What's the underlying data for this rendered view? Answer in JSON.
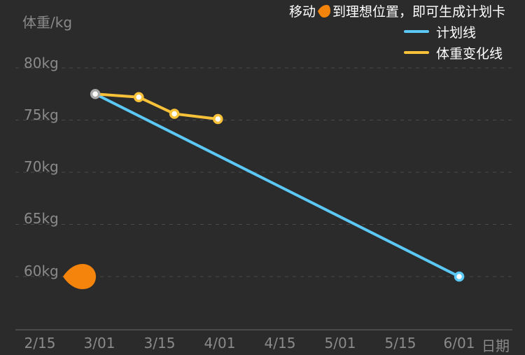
{
  "hint": {
    "before": "移动",
    "after": "到理想位置，即可生成计划卡"
  },
  "legend": {
    "plan_label": "计划线",
    "weight_label": "体重变化线"
  },
  "colors": {
    "background": "#2b2b2b",
    "plan": "#5bc8f5",
    "weight": "#f7c23a",
    "handle": "#f5840c",
    "start_point": "#a8a8a8"
  },
  "chart_data": {
    "type": "line",
    "ylabel": "体重/kg",
    "xunit": "日期",
    "yticks": [
      "80kg",
      "75kg",
      "70kg",
      "65kg",
      "60kg"
    ],
    "xticks": [
      "2/15",
      "3/01",
      "3/15",
      "4/01",
      "4/15",
      "5/01",
      "5/15",
      "6/01"
    ],
    "ylim": [
      55,
      82
    ],
    "series": [
      {
        "name": "计划线",
        "points": [
          [
            "3/01",
            77.5
          ],
          [
            "6/01",
            60
          ]
        ]
      },
      {
        "name": "体重变化线",
        "points": [
          [
            "3/01",
            77.5
          ],
          [
            "3/12",
            77.2
          ],
          [
            "3/21",
            75.6
          ],
          [
            "4/01",
            75.1
          ]
        ]
      }
    ],
    "handle_value": 60
  }
}
